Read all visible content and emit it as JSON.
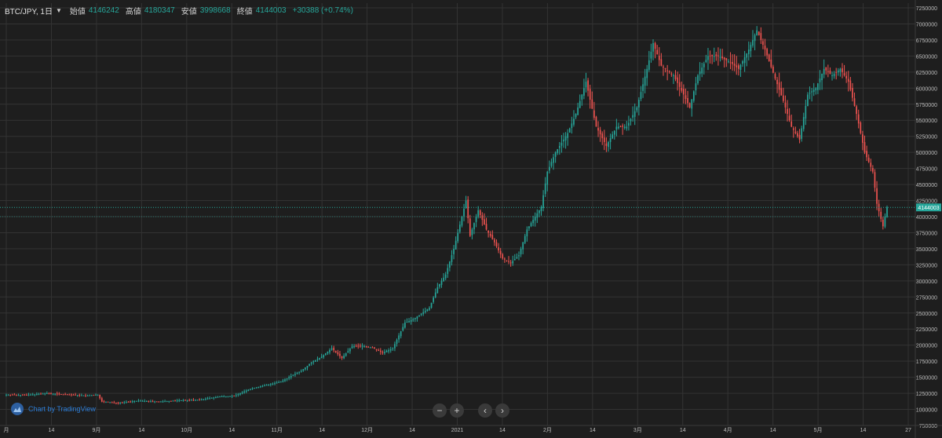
{
  "legend": {
    "symbol": "BTC/JPY, 1日",
    "open_label": "始値",
    "open": "4146242",
    "high_label": "高値",
    "high": "4180347",
    "low_label": "安値",
    "low": "3998668",
    "close_label": "終値",
    "close": "4144003",
    "change": "+30388 (+0.74%)"
  },
  "branding": {
    "text": "Chart by TradingView"
  },
  "nav": {
    "zoom_out": "−",
    "zoom_in": "+",
    "scroll_left": "‹",
    "scroll_right": "›"
  },
  "colors": {
    "up": "#26a69a",
    "down": "#ef5350",
    "background": "#1e1e1e",
    "grid": "#333333",
    "price_line": "#26a69a"
  },
  "chart_data": {
    "type": "candlestick",
    "title": "",
    "xlabel": "",
    "ylabel": "",
    "ylim": [
      750000,
      7250000
    ],
    "x_tick_labels": [
      "月",
      "14",
      "9月",
      "14",
      "10月",
      "14",
      "11月",
      "14",
      "12月",
      "14",
      "2021",
      "14",
      "2月",
      "14",
      "3月",
      "14",
      "4月",
      "14",
      "5月",
      "14",
      "27"
    ],
    "y_tick_labels": [
      "7250000",
      "7000000",
      "6750000",
      "6500000",
      "6250000",
      "6000000",
      "5750000",
      "5500000",
      "5250000",
      "5000000",
      "4750000",
      "4500000",
      "4250000",
      "4000000",
      "3750000",
      "3500000",
      "3250000",
      "3000000",
      "2750000",
      "2500000",
      "2250000",
      "2000000",
      "1750000",
      "1500000",
      "1250000",
      "1000000",
      "750000"
    ],
    "last_price": "4144003",
    "grid": true,
    "close_anchors": [
      [
        0,
        1230000
      ],
      [
        10,
        1225000
      ],
      [
        20,
        1250000
      ],
      [
        30,
        1230000
      ],
      [
        40,
        1215000
      ],
      [
        45,
        1230000
      ],
      [
        47,
        1120000
      ],
      [
        55,
        1100000
      ],
      [
        65,
        1135000
      ],
      [
        75,
        1120000
      ],
      [
        85,
        1140000
      ],
      [
        95,
        1150000
      ],
      [
        105,
        1200000
      ],
      [
        112,
        1210000
      ],
      [
        120,
        1320000
      ],
      [
        128,
        1380000
      ],
      [
        135,
        1430000
      ],
      [
        140,
        1520000
      ],
      [
        145,
        1600000
      ],
      [
        150,
        1730000
      ],
      [
        155,
        1820000
      ],
      [
        160,
        1950000
      ],
      [
        165,
        1800000
      ],
      [
        170,
        1980000
      ],
      [
        175,
        1990000
      ],
      [
        180,
        1960000
      ],
      [
        185,
        1880000
      ],
      [
        190,
        1950000
      ],
      [
        196,
        2350000
      ],
      [
        200,
        2400000
      ],
      [
        208,
        2580000
      ],
      [
        212,
        2900000
      ],
      [
        216,
        3100000
      ],
      [
        220,
        3500000
      ],
      [
        224,
        4000000
      ],
      [
        226,
        4250000
      ],
      [
        228,
        3700000
      ],
      [
        232,
        4100000
      ],
      [
        236,
        3800000
      ],
      [
        240,
        3600000
      ],
      [
        244,
        3350000
      ],
      [
        248,
        3280000
      ],
      [
        252,
        3400000
      ],
      [
        256,
        3800000
      ],
      [
        260,
        4000000
      ],
      [
        263,
        4150000
      ],
      [
        266,
        4700000
      ],
      [
        270,
        5000000
      ],
      [
        276,
        5300000
      ],
      [
        280,
        5600000
      ],
      [
        285,
        6100000
      ],
      [
        290,
        5400000
      ],
      [
        295,
        5100000
      ],
      [
        300,
        5400000
      ],
      [
        305,
        5400000
      ],
      [
        310,
        5700000
      ],
      [
        315,
        6300000
      ],
      [
        318,
        6700000
      ],
      [
        322,
        6350000
      ],
      [
        328,
        6200000
      ],
      [
        333,
        5900000
      ],
      [
        336,
        5700000
      ],
      [
        340,
        6200000
      ],
      [
        345,
        6500000
      ],
      [
        350,
        6500000
      ],
      [
        356,
        6400000
      ],
      [
        360,
        6300000
      ],
      [
        365,
        6600000
      ],
      [
        369,
        6900000
      ],
      [
        373,
        6600000
      ],
      [
        378,
        6150000
      ],
      [
        382,
        5800000
      ],
      [
        386,
        5400000
      ],
      [
        390,
        5200000
      ],
      [
        394,
        5900000
      ],
      [
        398,
        6000000
      ],
      [
        402,
        6300000
      ],
      [
        406,
        6200000
      ],
      [
        410,
        6300000
      ],
      [
        414,
        6100000
      ],
      [
        418,
        5600000
      ],
      [
        422,
        5000000
      ],
      [
        426,
        4700000
      ],
      [
        428,
        4200000
      ],
      [
        431,
        3850000
      ],
      [
        433,
        4144003
      ]
    ]
  }
}
